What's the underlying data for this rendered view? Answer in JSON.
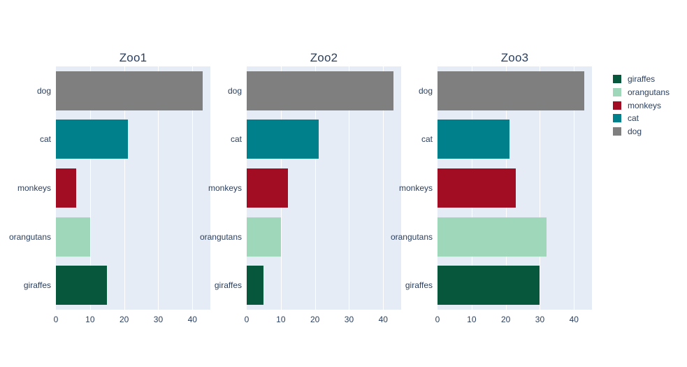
{
  "chart_data": {
    "type": "bar",
    "orientation": "horizontal",
    "grid": true,
    "legend_position": "right",
    "categories_top_to_bottom": [
      "dog",
      "cat",
      "monkeys",
      "orangutans",
      "giraffes"
    ],
    "colors": {
      "dog": "#7f7f7f",
      "cat": "#00808a",
      "monkeys": "#a20d23",
      "orangutans": "#9ed7ba",
      "giraffes": "#06573c"
    },
    "xlim": [
      0,
      45.26
    ],
    "xticks": [
      0,
      10,
      20,
      30,
      40
    ],
    "facets": [
      {
        "title": "Zoo1",
        "values": [
          43,
          21,
          6,
          10,
          15
        ]
      },
      {
        "title": "Zoo2",
        "values": [
          43,
          21,
          12,
          10,
          5
        ]
      },
      {
        "title": "Zoo3",
        "values": [
          43,
          21,
          23,
          32,
          30
        ]
      }
    ]
  },
  "legend": {
    "items": [
      {
        "label": "giraffes",
        "color": "#06573c"
      },
      {
        "label": "orangutans",
        "color": "#9ed7ba"
      },
      {
        "label": "monkeys",
        "color": "#a20d23"
      },
      {
        "label": "cat",
        "color": "#00808a"
      },
      {
        "label": "dog",
        "color": "#7f7f7f"
      }
    ]
  },
  "style": {
    "plot_bg": "#e5ecf6",
    "grid_color": "#ffffff",
    "text_color": "#2a3f5f"
  }
}
